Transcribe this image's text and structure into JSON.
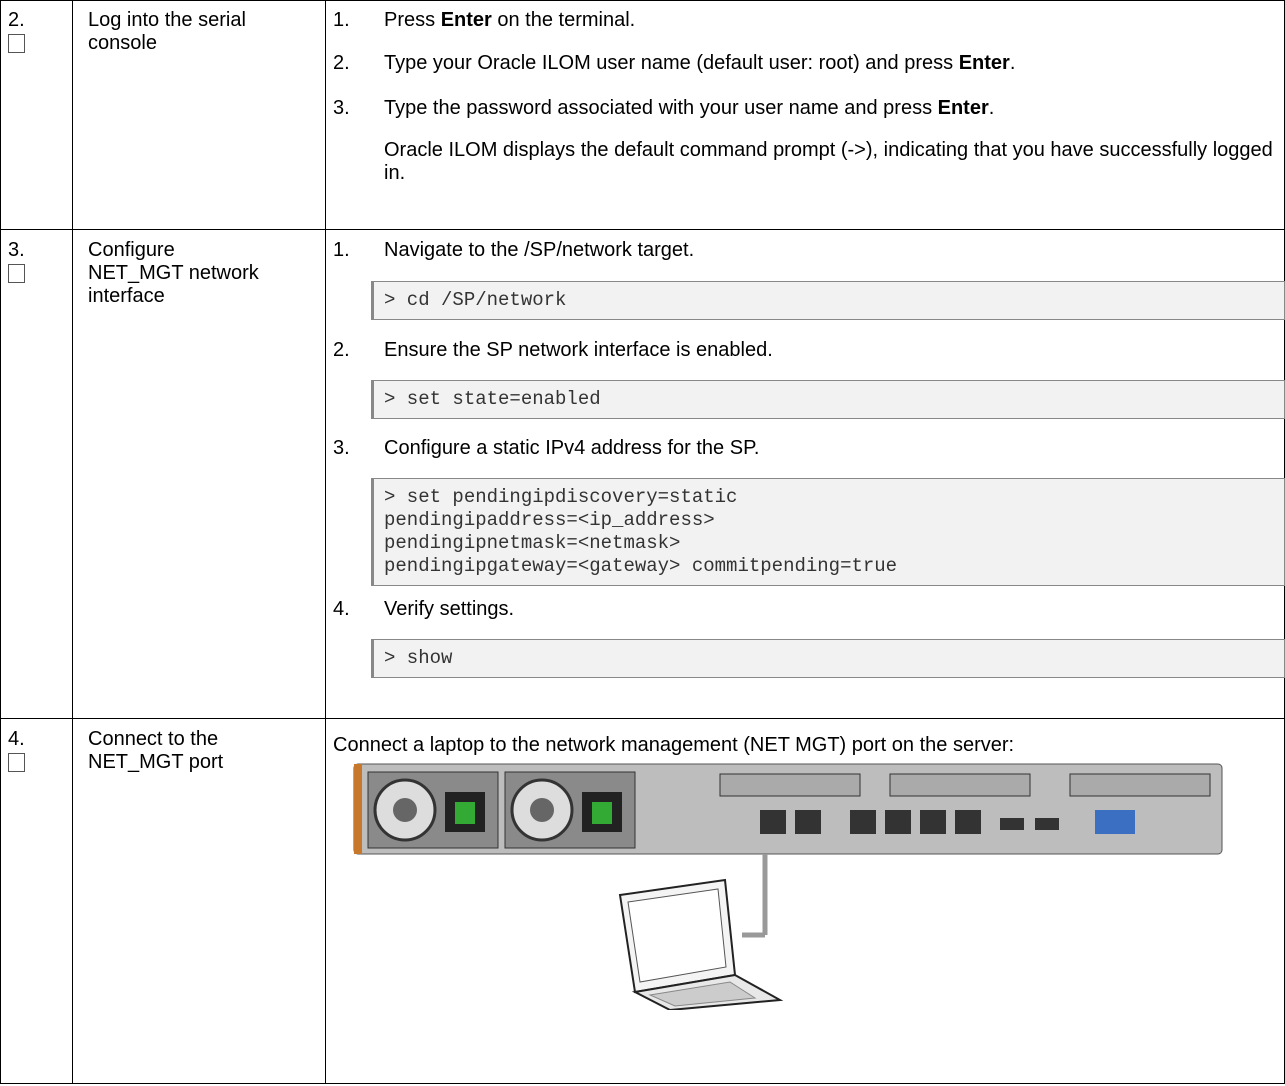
{
  "rows": [
    {
      "step": "2.",
      "task": "Log into the serial console",
      "instructions": [
        {
          "num": "1.",
          "pre": "Press ",
          "bold": "Enter",
          "post": " on the terminal."
        },
        {
          "num": "2.",
          "pre": "Type your Oracle ILOM user name (default user: root) and press ",
          "bold": "Enter",
          "post": "."
        },
        {
          "num": "3.",
          "pre": "Type the password associated with your user name and press ",
          "bold": "Enter",
          "post": "."
        }
      ],
      "note": "Oracle ILOM displays the default command prompt (->), indicating that you have successfully logged in."
    },
    {
      "step": "3.",
      "task": "Configure NET_MGT network interface",
      "instructions": [
        {
          "num": "1.",
          "text": "Navigate to the /SP/network target.",
          "code": "> cd /SP/network"
        },
        {
          "num": "2.",
          "text": "Ensure the SP network interface is enabled.",
          "code": "> set state=enabled"
        },
        {
          "num": "3.",
          "text": "Configure a static IPv4 address for the SP.",
          "code": "> set pendingipdiscovery=static\npendingipaddress=<ip_address>\npendingipnetmask=<netmask>\npendingipgateway=<gateway> commitpending=true"
        },
        {
          "num": "4.",
          "text": "Verify settings.",
          "code": "> show"
        }
      ]
    },
    {
      "step": "4.",
      "task": "Connect to the NET_MGT port",
      "text": "Connect a laptop to the network management (NET MGT) port on the server:"
    }
  ]
}
